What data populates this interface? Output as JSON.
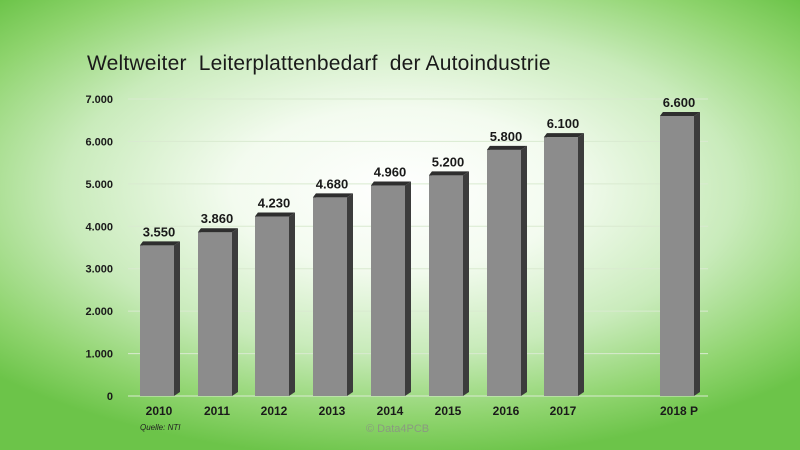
{
  "title": "Weltweiter  Leiterplattenbedarf  der Autoindustrie",
  "source": "Quelle: NTI",
  "copyright": "© Data4PCB",
  "chart_data": {
    "type": "bar",
    "title": "Weltweiter  Leiterplattenbedarf  der Autoindustrie",
    "xlabel": "",
    "ylabel": "",
    "categories": [
      "2010",
      "2011",
      "2012",
      "2013",
      "2014",
      "2015",
      "2016",
      "2017",
      "2018 P"
    ],
    "values": [
      3550,
      3860,
      4230,
      4680,
      4960,
      5200,
      5800,
      6100,
      6600
    ],
    "data_labels": [
      "3.550",
      "3.860",
      "4.230",
      "4.680",
      "4.960",
      "5.200",
      "5.800",
      "6.100",
      "6.600"
    ],
    "ylim": [
      0,
      7000
    ],
    "yticks": [
      0,
      1000,
      2000,
      3000,
      4000,
      5000,
      6000,
      7000
    ],
    "ytick_labels": [
      "0",
      "1.000",
      "2.000",
      "3.000",
      "4.000",
      "5.000",
      "6.000",
      "7.000"
    ],
    "grid": true,
    "colors": {
      "bar_front": "#8c8c8c",
      "bar_side": "#3c3c3c",
      "bar_top": "#2e2e2e",
      "bar_highlight": "#505050",
      "grid": "#d9ead0"
    }
  }
}
